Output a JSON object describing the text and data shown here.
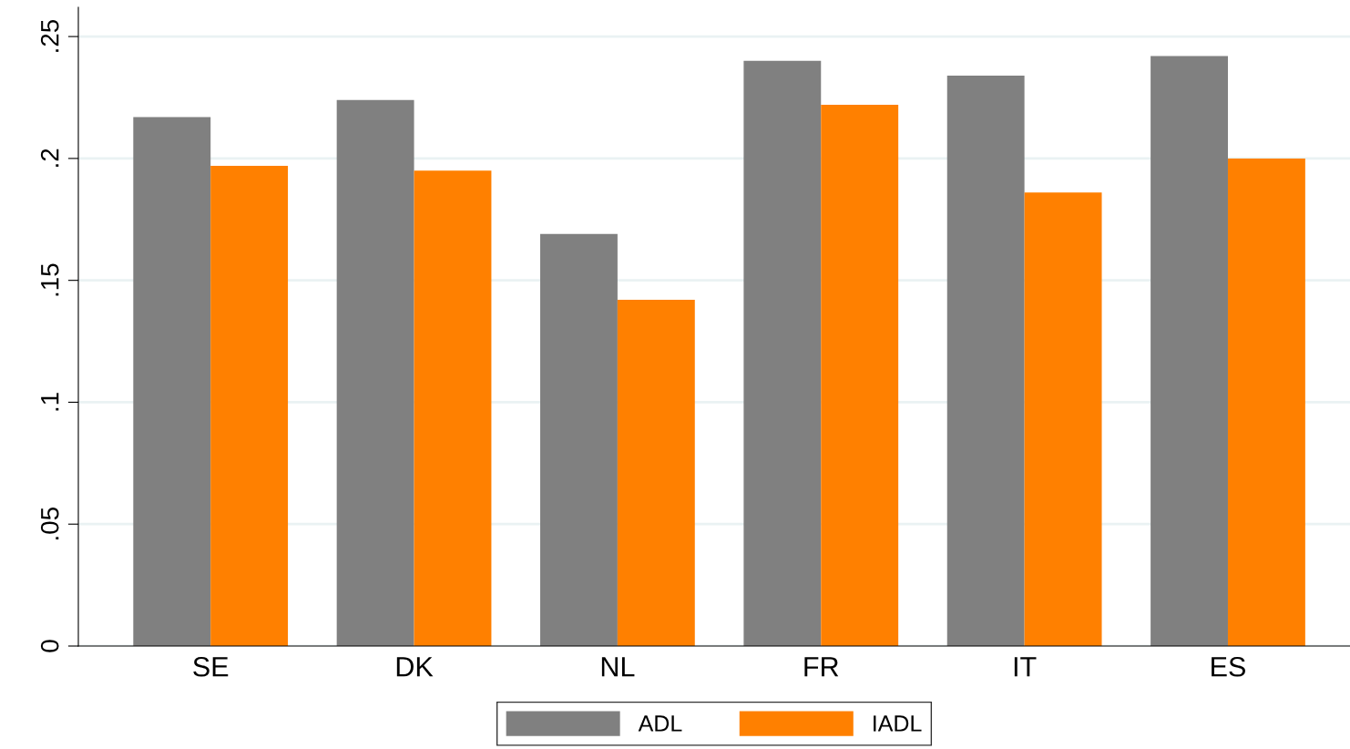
{
  "chart_data": {
    "type": "bar",
    "categories": [
      "SE",
      "DK",
      "NL",
      "FR",
      "IT",
      "ES"
    ],
    "series": [
      {
        "name": "ADL",
        "color": "#808080",
        "values": [
          0.217,
          0.224,
          0.169,
          0.24,
          0.234,
          0.242
        ]
      },
      {
        "name": "IADL",
        "color": "#ff8000",
        "values": [
          0.197,
          0.195,
          0.142,
          0.222,
          0.186,
          0.2
        ]
      }
    ],
    "ylim": [
      0,
      0.262
    ],
    "yticks": [
      {
        "value": 0,
        "label": "0"
      },
      {
        "value": 0.05,
        "label": ".05"
      },
      {
        "value": 0.1,
        "label": ".1"
      },
      {
        "value": 0.15,
        "label": ".15"
      },
      {
        "value": 0.2,
        "label": ".2"
      },
      {
        "value": 0.25,
        "label": ".25"
      }
    ],
    "grid": "y",
    "legend": "bottom"
  }
}
